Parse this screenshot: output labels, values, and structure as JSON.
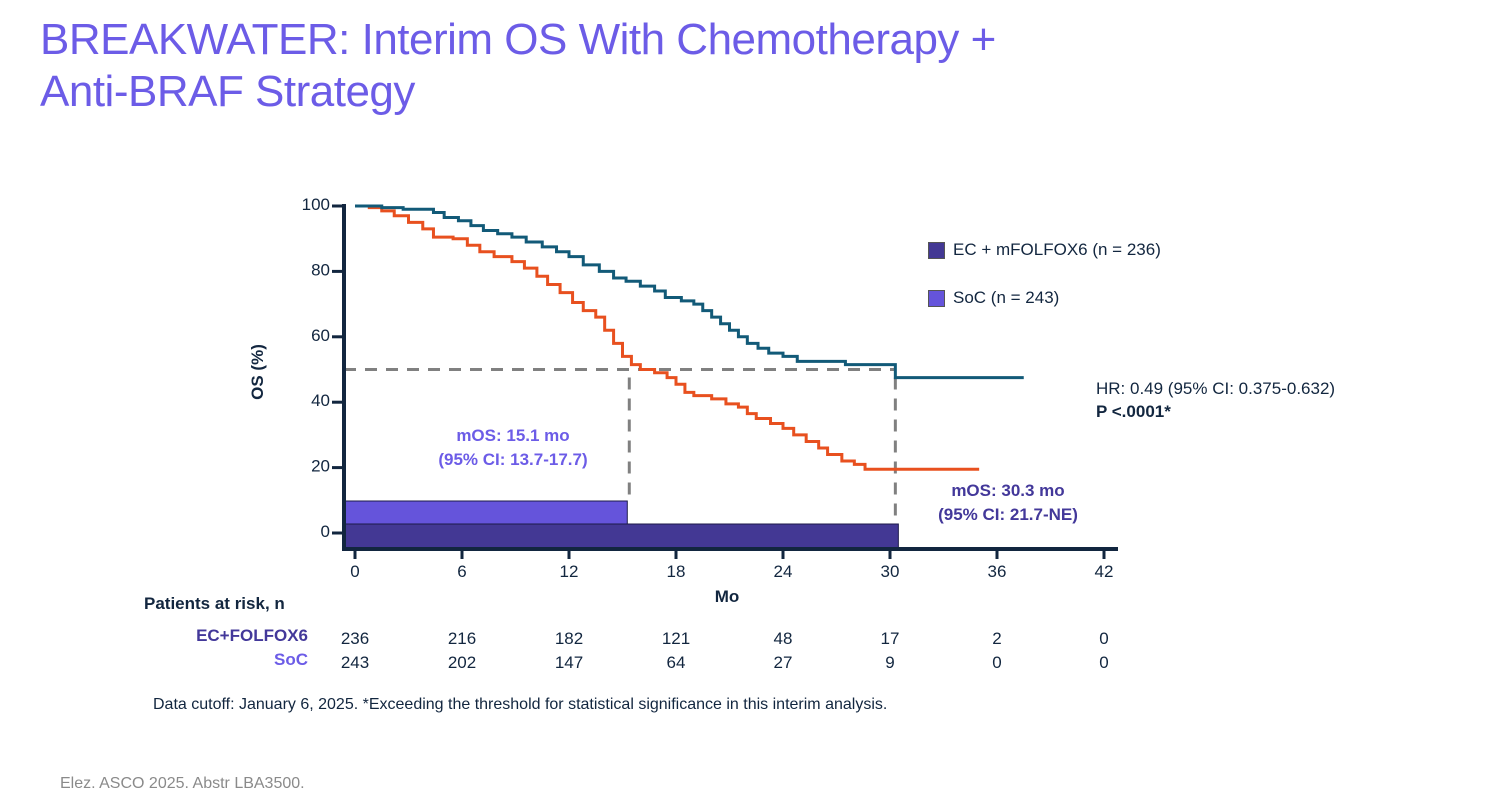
{
  "title": {
    "line1": "BREAKWATER: Interim OS With Chemotherapy +",
    "line2": "Anti-BRAF Strategy"
  },
  "colors": {
    "title": "#6c5ce7",
    "ec_curve": "#125a78",
    "soc_curve": "#e8501f",
    "ec_bar": "#433894",
    "soc_bar": "#6554db",
    "median_line": "#808080",
    "axis": "#12263f"
  },
  "legend": {
    "items": [
      {
        "label": "EC + mFOLFOX6 (n = 236)",
        "color": "#433894"
      },
      {
        "label": "SoC (n = 243)",
        "color": "#6554db"
      }
    ]
  },
  "stats": {
    "hr": "HR: 0.49 (95% CI: 0.375-0.632)",
    "p": "P <.0001*"
  },
  "annotations": {
    "soc_mos_line1": "mOS: 15.1 mo",
    "soc_mos_line2": "(95% CI: 13.7-17.7)",
    "ec_mos_line1": "mOS: 30.3 mo",
    "ec_mos_line2": "(95% CI: 21.7-NE)"
  },
  "risk_table": {
    "header": "Patients at risk, n",
    "rows": [
      {
        "label": "EC+FOLFOX6",
        "color": "#43389a",
        "values": [
          "236",
          "216",
          "182",
          "121",
          "48",
          "17",
          "2",
          "0"
        ]
      },
      {
        "label": "SoC",
        "color": "#6c5ce7",
        "values": [
          "243",
          "202",
          "147",
          "64",
          "27",
          "9",
          "0",
          "0"
        ]
      }
    ]
  },
  "footnote": "Data cutoff: January 6, 2025. *Exceeding the threshold for statistical significance in this interim analysis.",
  "citation": "Elez. ASCO 2025. Abstr LBA3500.",
  "chart_data": {
    "type": "line",
    "subtype": "kaplan-meier-step",
    "title": "",
    "xlabel": "Mo",
    "ylabel": "OS (%)",
    "xlim": [
      0,
      42
    ],
    "ylim": [
      0,
      100
    ],
    "x_ticks": [
      0,
      6,
      12,
      18,
      24,
      30,
      36,
      42
    ],
    "y_ticks": [
      0,
      20,
      40,
      60,
      80,
      100
    ],
    "grid": false,
    "legend_position": "top-right",
    "median_reference_y": 50,
    "series": [
      {
        "name": "EC + mFOLFOX6 (n = 236)",
        "color": "#125a78",
        "median_os": 30.3,
        "points": [
          [
            0,
            100
          ],
          [
            1.5,
            99.5
          ],
          [
            2.7,
            99
          ],
          [
            4.4,
            98
          ],
          [
            5.0,
            96.5
          ],
          [
            5.8,
            95.5
          ],
          [
            6.5,
            94
          ],
          [
            7.2,
            92.5
          ],
          [
            8.0,
            91.5
          ],
          [
            8.8,
            90.5
          ],
          [
            9.6,
            89
          ],
          [
            10.5,
            87.5
          ],
          [
            11.3,
            86
          ],
          [
            12.0,
            84.5
          ],
          [
            12.8,
            82
          ],
          [
            13.7,
            80
          ],
          [
            14.5,
            78
          ],
          [
            15.2,
            77
          ],
          [
            16.0,
            75.5
          ],
          [
            16.8,
            74
          ],
          [
            17.4,
            72
          ],
          [
            18.3,
            71
          ],
          [
            19.0,
            70
          ],
          [
            19.5,
            68
          ],
          [
            20.0,
            66
          ],
          [
            20.5,
            64
          ],
          [
            21.0,
            62
          ],
          [
            21.5,
            60
          ],
          [
            22.0,
            58
          ],
          [
            22.6,
            56.5
          ],
          [
            23.2,
            55
          ],
          [
            24.0,
            54
          ],
          [
            24.8,
            52.5
          ],
          [
            27.5,
            51.5
          ],
          [
            30.3,
            47.5
          ],
          [
            37.5,
            47.5
          ]
        ]
      },
      {
        "name": "SoC (n = 243)",
        "color": "#e8501f",
        "median_os": 15.1,
        "points": [
          [
            0,
            100
          ],
          [
            0.8,
            99.5
          ],
          [
            1.5,
            98.5
          ],
          [
            2.2,
            97
          ],
          [
            3.0,
            95
          ],
          [
            3.8,
            93
          ],
          [
            4.4,
            90.5
          ],
          [
            5.5,
            90
          ],
          [
            6.3,
            88
          ],
          [
            7.0,
            86
          ],
          [
            7.8,
            84.5
          ],
          [
            8.8,
            83
          ],
          [
            9.5,
            81
          ],
          [
            10.2,
            78.5
          ],
          [
            10.8,
            76
          ],
          [
            11.5,
            73.5
          ],
          [
            12.2,
            70.5
          ],
          [
            12.8,
            68
          ],
          [
            13.5,
            66
          ],
          [
            14.0,
            62
          ],
          [
            14.5,
            58
          ],
          [
            15.0,
            54
          ],
          [
            15.5,
            51.5
          ],
          [
            16.0,
            50
          ],
          [
            16.8,
            49
          ],
          [
            17.5,
            47.5
          ],
          [
            18.0,
            45.5
          ],
          [
            18.5,
            43
          ],
          [
            19.0,
            42
          ],
          [
            20.0,
            41
          ],
          [
            20.8,
            39.5
          ],
          [
            21.5,
            38.5
          ],
          [
            22.0,
            36.5
          ],
          [
            22.5,
            35
          ],
          [
            23.3,
            33.5
          ],
          [
            24.0,
            32
          ],
          [
            24.6,
            30
          ],
          [
            25.3,
            28
          ],
          [
            26.0,
            26
          ],
          [
            26.5,
            24
          ],
          [
            27.3,
            22
          ],
          [
            28.0,
            21
          ],
          [
            28.6,
            19.5
          ],
          [
            35.0,
            19.5
          ]
        ]
      }
    ],
    "median_bars": [
      {
        "name": "EC + mFOLFOX6",
        "value": 30.3,
        "color": "#433894"
      },
      {
        "name": "SoC",
        "value": 15.1,
        "color": "#6554db"
      }
    ],
    "annotations": [
      "mOS: 15.1 mo (95% CI: 13.7-17.7)",
      "mOS: 30.3 mo (95% CI: 21.7-NE)",
      "HR: 0.49 (95% CI: 0.375-0.632)",
      "P <.0001*"
    ],
    "risk_table": {
      "times": [
        0,
        6,
        12,
        18,
        24,
        30,
        36,
        42
      ],
      "EC+FOLFOX6": [
        236,
        216,
        182,
        121,
        48,
        17,
        2,
        0
      ],
      "SoC": [
        243,
        202,
        147,
        64,
        27,
        9,
        0,
        0
      ]
    }
  }
}
